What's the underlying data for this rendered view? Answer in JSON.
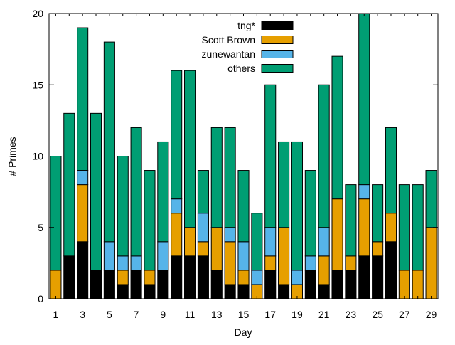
{
  "chart_data": {
    "type": "bar",
    "stacked": true,
    "title": "",
    "xlabel": "Day",
    "ylabel": "# Primes",
    "ylim": [
      0,
      20
    ],
    "yticks": [
      0,
      5,
      10,
      15,
      20
    ],
    "xtick_labels": [
      "1",
      "3",
      "5",
      "7",
      "9",
      "11",
      "13",
      "15",
      "17",
      "19",
      "21",
      "23",
      "25",
      "27",
      "29"
    ],
    "categories": [
      1,
      2,
      3,
      4,
      5,
      6,
      7,
      8,
      9,
      10,
      11,
      12,
      13,
      14,
      15,
      16,
      17,
      18,
      19,
      20,
      21,
      22,
      23,
      24,
      25,
      26,
      27,
      28,
      29
    ],
    "legend_position": "top-right",
    "series": [
      {
        "name": "tng*",
        "color": "#000000",
        "values": [
          0,
          3,
          4,
          2,
          2,
          1,
          2,
          1,
          2,
          3,
          3,
          3,
          2,
          1,
          1,
          0,
          2,
          1,
          0,
          2,
          1,
          2,
          2,
          3,
          3,
          4,
          0,
          0,
          0
        ]
      },
      {
        "name": "Scott Brown",
        "color": "#e69f00",
        "values": [
          2,
          0,
          4,
          0,
          0,
          1,
          0,
          1,
          0,
          3,
          2,
          1,
          3,
          3,
          1,
          1,
          1,
          4,
          1,
          0,
          2,
          5,
          1,
          4,
          1,
          2,
          2,
          2,
          5
        ]
      },
      {
        "name": "zunewantan",
        "color": "#56b4e9",
        "values": [
          0,
          0,
          1,
          0,
          2,
          1,
          1,
          0,
          2,
          1,
          0,
          2,
          0,
          1,
          2,
          1,
          2,
          0,
          1,
          1,
          2,
          0,
          0,
          1,
          0,
          0,
          0,
          0,
          0
        ]
      },
      {
        "name": "others",
        "color": "#009e73",
        "values": [
          8,
          10,
          10,
          11,
          14,
          7,
          9,
          7,
          7,
          9,
          11,
          3,
          7,
          7,
          5,
          4,
          10,
          6,
          9,
          6,
          10,
          10,
          5,
          12,
          4,
          6,
          6,
          6,
          4
        ]
      }
    ]
  }
}
